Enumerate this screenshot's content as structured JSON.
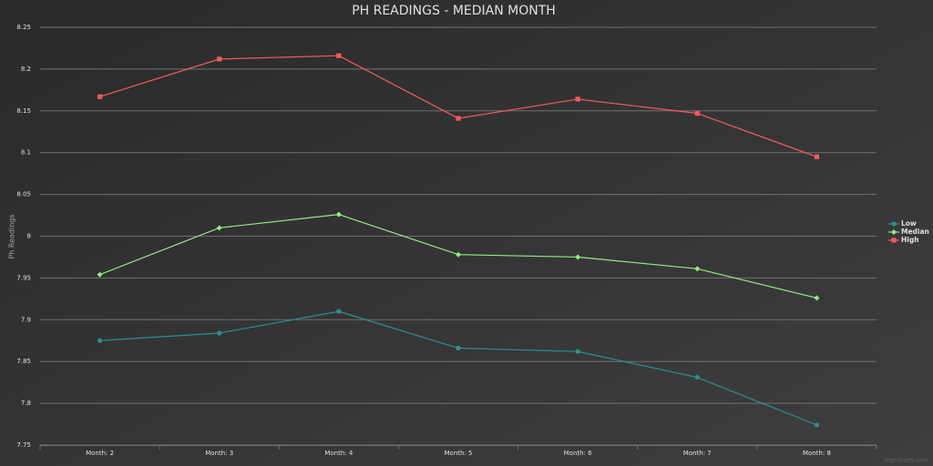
{
  "chart_data": {
    "type": "line",
    "title": "PH READINGS - MEDIAN MONTH",
    "y_axis_label": "Ph Readings",
    "credits": "Highcharts.com",
    "categories": [
      "Month: 2",
      "Month: 3",
      "Month: 4",
      "Month: 5",
      "Month: 6",
      "Month: 7",
      "Month: 8"
    ],
    "series": [
      {
        "name": "Low",
        "color": "#2b908f",
        "marker": "circle",
        "values": [
          7.875,
          7.884,
          7.91,
          7.866,
          7.862,
          7.831,
          7.774
        ]
      },
      {
        "name": "Median",
        "color": "#90ee7e",
        "marker": "diamond",
        "values": [
          7.954,
          8.01,
          8.026,
          7.978,
          7.975,
          7.961,
          7.926
        ]
      },
      {
        "name": "High",
        "color": "#f45b5b",
        "marker": "square",
        "values": [
          8.167,
          8.212,
          8.216,
          8.141,
          8.164,
          8.147,
          8.095
        ]
      }
    ],
    "ylim": [
      7.75,
      8.25
    ],
    "yticks": [
      7.75,
      7.8,
      7.85,
      7.9,
      7.95,
      8,
      8.05,
      8.1,
      8.15,
      8.2,
      8.25
    ],
    "grid": true,
    "legend": "right"
  }
}
